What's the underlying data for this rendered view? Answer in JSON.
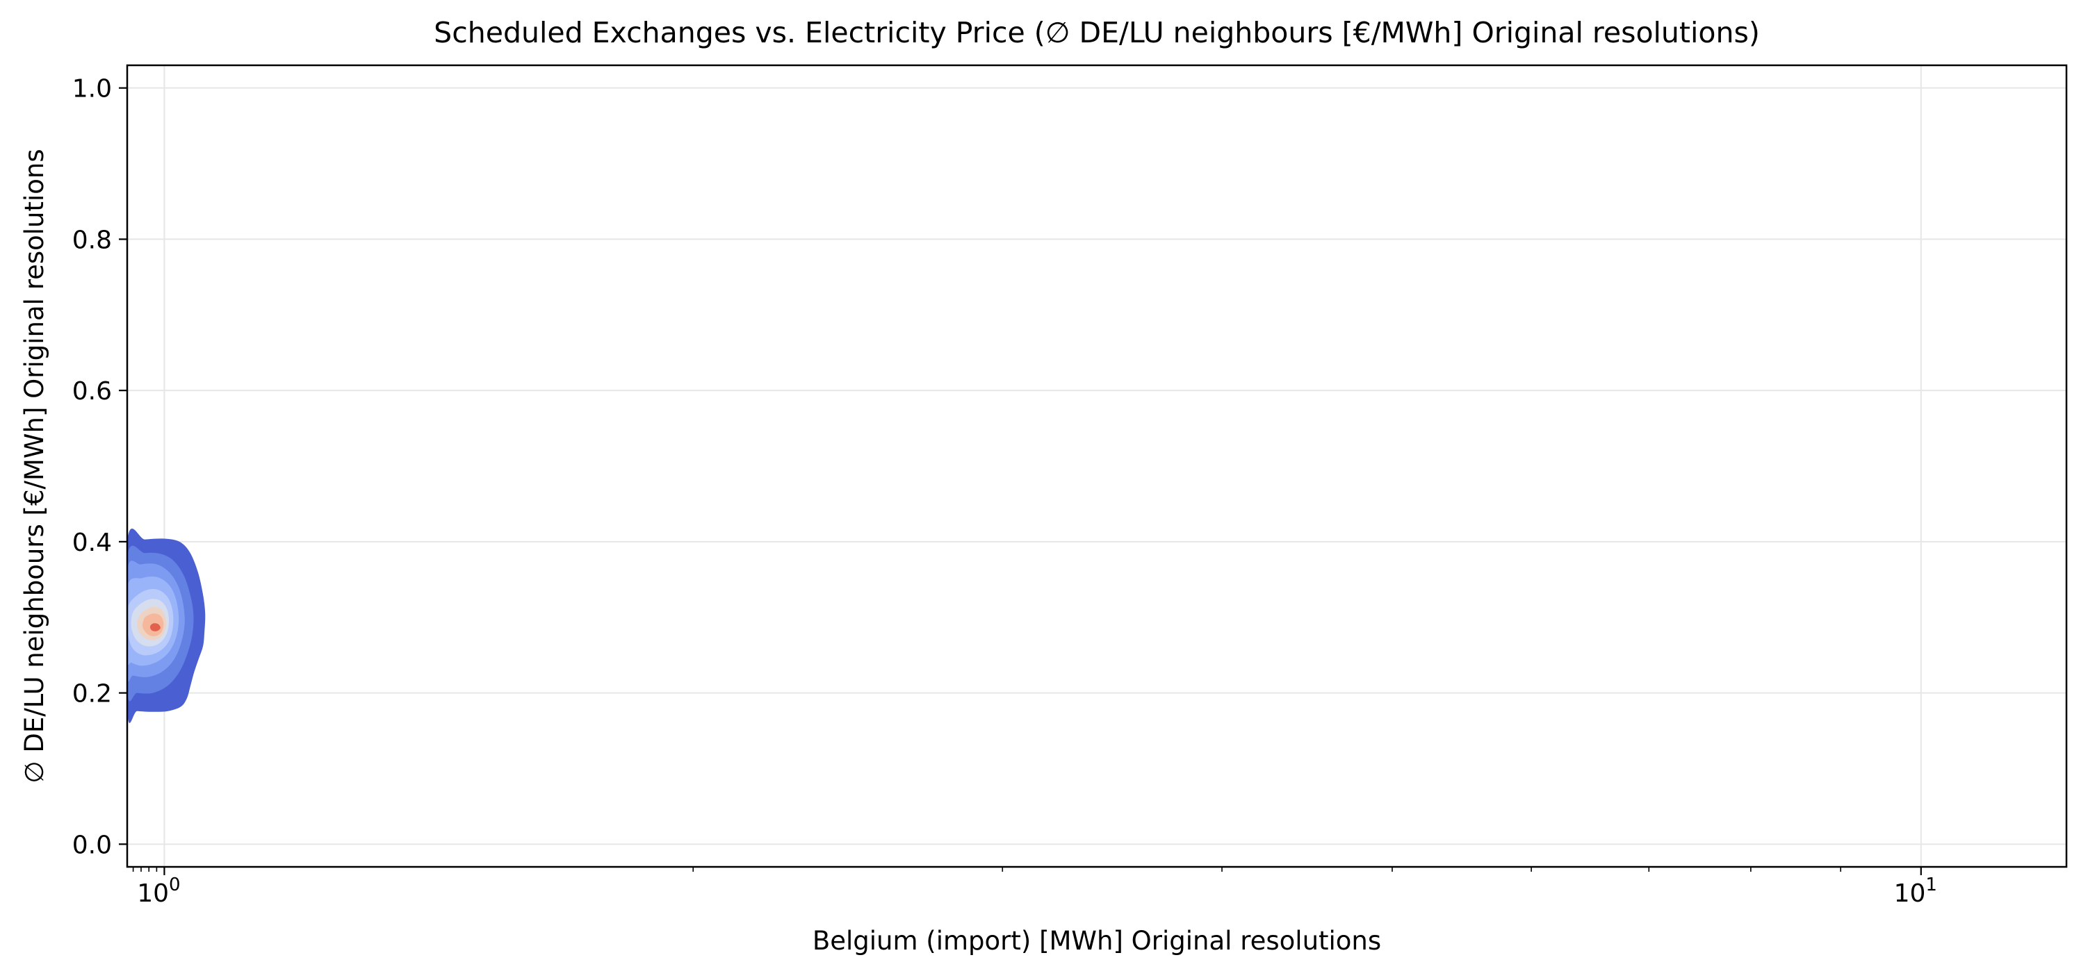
{
  "chart_data": {
    "type": "kde-contour",
    "title": "Scheduled Exchanges vs. Electricity Price (∅ DE/LU neighbours [€/MWh] Original resolutions)",
    "xlabel": "Belgium (import) [MWh] Original resolutions",
    "ylabel": "∅ DE/LU neighbours [€/MWh] Original resolutions",
    "xscale": "log",
    "xlim": [
      0.9525,
      12.1
    ],
    "ylim": [
      -0.03,
      1.03
    ],
    "grid": true,
    "x_ticks": [
      {
        "value": 1,
        "base": "10",
        "exp": "0"
      },
      {
        "value": 10,
        "base": "10",
        "exp": "1"
      }
    ],
    "x_minor_ticks": [
      2,
      3,
      4,
      5,
      6,
      7,
      8,
      9
    ],
    "y_ticks": [
      {
        "value": 0.0,
        "label": "0.0"
      },
      {
        "value": 0.2,
        "label": "0.2"
      },
      {
        "value": 0.4,
        "label": "0.4"
      },
      {
        "value": 0.6,
        "label": "0.6"
      },
      {
        "value": 0.8,
        "label": "0.8"
      },
      {
        "value": 1.0,
        "label": "1.0"
      }
    ],
    "colormap": [
      "#4a5fd1",
      "#6380e3",
      "#7e9bf2",
      "#9ab4fa",
      "#b8cbfb",
      "#d6ddee",
      "#edd3c4",
      "#f5b89c",
      "#e1614c"
    ],
    "density_center": {
      "x": 0.985,
      "y": 0.286
    },
    "contour_levels": [
      {
        "level": 1,
        "color": "#4a5fd1",
        "points": [
          [
            0.9525,
            0.4
          ],
          [
            0.975,
            0.403
          ],
          [
            1.0,
            0.404
          ],
          [
            1.02,
            0.4
          ],
          [
            1.034,
            0.386
          ],
          [
            1.045,
            0.36
          ],
          [
            1.052,
            0.33
          ],
          [
            1.055,
            0.305
          ],
          [
            1.054,
            0.28
          ],
          [
            1.052,
            0.262
          ],
          [
            1.046,
            0.245
          ],
          [
            1.04,
            0.228
          ],
          [
            1.035,
            0.21
          ],
          [
            1.03,
            0.193
          ],
          [
            1.022,
            0.182
          ],
          [
            1.005,
            0.176
          ],
          [
            0.985,
            0.175
          ],
          [
            0.965,
            0.176
          ],
          [
            0.9525,
            0.177
          ]
        ]
      },
      {
        "level": 2,
        "color": "#6380e3",
        "points": [
          [
            0.9525,
            0.38
          ],
          [
            0.975,
            0.385
          ],
          [
            0.995,
            0.384
          ],
          [
            1.012,
            0.375
          ],
          [
            1.026,
            0.355
          ],
          [
            1.035,
            0.328
          ],
          [
            1.039,
            0.302
          ],
          [
            1.037,
            0.275
          ],
          [
            1.03,
            0.25
          ],
          [
            1.02,
            0.228
          ],
          [
            1.005,
            0.21
          ],
          [
            0.985,
            0.2
          ],
          [
            0.965,
            0.2
          ],
          [
            0.9525,
            0.203
          ]
        ]
      },
      {
        "level": 3,
        "color": "#7e9bf2",
        "points": [
          [
            0.9525,
            0.362
          ],
          [
            0.97,
            0.37
          ],
          [
            0.99,
            0.37
          ],
          [
            1.006,
            0.36
          ],
          [
            1.018,
            0.342
          ],
          [
            1.025,
            0.318
          ],
          [
            1.027,
            0.292
          ],
          [
            1.022,
            0.265
          ],
          [
            1.012,
            0.243
          ],
          [
            0.997,
            0.228
          ],
          [
            0.978,
            0.221
          ],
          [
            0.96,
            0.223
          ],
          [
            0.9525,
            0.226
          ]
        ]
      },
      {
        "level": 4,
        "color": "#9ab4fa",
        "points": [
          [
            0.9525,
            0.34
          ],
          [
            0.972,
            0.352
          ],
          [
            0.991,
            0.353
          ],
          [
            1.006,
            0.343
          ],
          [
            1.015,
            0.325
          ],
          [
            1.019,
            0.3
          ],
          [
            1.016,
            0.275
          ],
          [
            1.006,
            0.254
          ],
          [
            0.99,
            0.241
          ],
          [
            0.972,
            0.236
          ],
          [
            0.958,
            0.24
          ],
          [
            0.9525,
            0.246
          ]
        ]
      },
      {
        "level": 5,
        "color": "#b8cbfb",
        "points": [
          [
            0.955,
            0.318
          ],
          [
            0.972,
            0.334
          ],
          [
            0.99,
            0.337
          ],
          [
            1.004,
            0.327
          ],
          [
            1.011,
            0.308
          ],
          [
            1.011,
            0.285
          ],
          [
            1.004,
            0.265
          ],
          [
            0.99,
            0.253
          ],
          [
            0.973,
            0.25
          ],
          [
            0.96,
            0.258
          ],
          [
            0.954,
            0.275
          ],
          [
            0.953,
            0.298
          ]
        ]
      },
      {
        "level": 6,
        "color": "#d6ddee",
        "points": [
          [
            0.963,
            0.312
          ],
          [
            0.978,
            0.323
          ],
          [
            0.993,
            0.323
          ],
          [
            1.003,
            0.312
          ],
          [
            1.006,
            0.294
          ],
          [
            1.002,
            0.276
          ],
          [
            0.991,
            0.264
          ],
          [
            0.976,
            0.262
          ],
          [
            0.964,
            0.27
          ],
          [
            0.958,
            0.285
          ],
          [
            0.958,
            0.3
          ]
        ]
      },
      {
        "level": 7,
        "color": "#edd3c4",
        "points": [
          [
            0.97,
            0.305
          ],
          [
            0.982,
            0.313
          ],
          [
            0.994,
            0.312
          ],
          [
            1.001,
            0.302
          ],
          [
            1.002,
            0.288
          ],
          [
            0.997,
            0.276
          ],
          [
            0.987,
            0.27
          ],
          [
            0.976,
            0.272
          ],
          [
            0.967,
            0.281
          ],
          [
            0.965,
            0.294
          ]
        ]
      },
      {
        "level": 8,
        "color": "#f5b89c",
        "points": [
          [
            0.976,
            0.301
          ],
          [
            0.986,
            0.305
          ],
          [
            0.995,
            0.302
          ],
          [
            0.999,
            0.292
          ],
          [
            0.996,
            0.28
          ],
          [
            0.987,
            0.275
          ],
          [
            0.978,
            0.278
          ],
          [
            0.972,
            0.287
          ],
          [
            0.973,
            0.296
          ]
        ]
      },
      {
        "level": 9,
        "color": "#e1614c",
        "points": [
          [
            0.982,
            0.289
          ],
          [
            0.986,
            0.292
          ],
          [
            0.992,
            0.291
          ],
          [
            0.995,
            0.286
          ],
          [
            0.991,
            0.282
          ],
          [
            0.985,
            0.282
          ],
          [
            0.982,
            0.285
          ]
        ]
      }
    ]
  }
}
